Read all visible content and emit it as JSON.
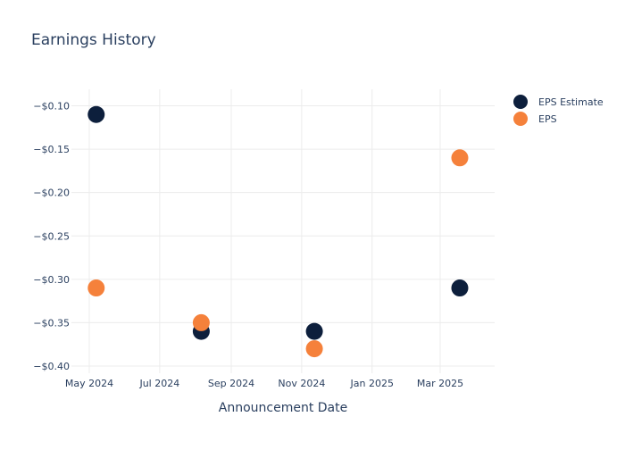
{
  "chart_data": {
    "type": "scatter",
    "title": "Earnings History",
    "xlabel": "Announcement Date",
    "ylabel": "",
    "x_tick_labels": [
      "May 2024",
      "Jul 2024",
      "Sep 2024",
      "Nov 2024",
      "Jan 2025",
      "Mar 2025"
    ],
    "x_ticks": [
      "2024-05-01",
      "2024-07-01",
      "2024-09-01",
      "2024-11-01",
      "2025-01-01",
      "2025-03-01"
    ],
    "xlim": [
      "2024-05-01",
      "2025-04-15"
    ],
    "y_tick_labels": [
      "−$0.10",
      "−$0.15",
      "−$0.20",
      "−$0.25",
      "−$0.30",
      "−$0.35",
      "−$0.40"
    ],
    "y_ticks": [
      -0.1,
      -0.15,
      -0.2,
      -0.25,
      -0.3,
      -0.35,
      -0.4
    ],
    "ylim": [
      -0.41,
      -0.08
    ],
    "grid": true,
    "legend_position": "top-right",
    "series": [
      {
        "name": "EPS Estimate",
        "color": "#0d1f3c",
        "x": [
          "2024-05-07",
          "2024-08-06",
          "2024-11-12",
          "2025-03-18"
        ],
        "y": [
          -0.11,
          -0.36,
          -0.36,
          -0.31
        ]
      },
      {
        "name": "EPS",
        "color": "#f5813b",
        "x": [
          "2024-05-07",
          "2024-08-06",
          "2024-11-12",
          "2025-03-18"
        ],
        "y": [
          -0.31,
          -0.35,
          -0.38,
          -0.16
        ]
      }
    ]
  }
}
